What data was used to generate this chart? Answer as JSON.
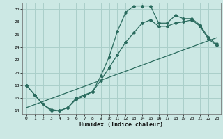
{
  "title": "",
  "xlabel": "Humidex (Indice chaleur)",
  "ylabel": "",
  "background_color": "#cce8e4",
  "grid_color": "#aacfca",
  "line_color": "#2a6b5e",
  "xlim": [
    -0.5,
    23.5
  ],
  "ylim": [
    13.5,
    31.0
  ],
  "xticks": [
    0,
    1,
    2,
    3,
    4,
    5,
    6,
    7,
    8,
    9,
    10,
    11,
    12,
    13,
    14,
    15,
    16,
    17,
    18,
    19,
    20,
    21,
    22,
    23
  ],
  "yticks": [
    14,
    16,
    18,
    20,
    22,
    24,
    26,
    28,
    30
  ],
  "series1_x": [
    0,
    1,
    2,
    3,
    4,
    5,
    6,
    7,
    8,
    9,
    10,
    11,
    12,
    13,
    14,
    15,
    16,
    17,
    18,
    19,
    20,
    21,
    22,
    23
  ],
  "series1_y": [
    18,
    16.5,
    15,
    14,
    14,
    14.5,
    16,
    16.5,
    17,
    19.5,
    22.5,
    26.5,
    29.5,
    30.5,
    30.5,
    30.5,
    27.8,
    27.8,
    29,
    28.5,
    28.5,
    27.5,
    25.5,
    24.5
  ],
  "series2_x": [
    0,
    1,
    2,
    3,
    4,
    5,
    6,
    7,
    8,
    9,
    10,
    11,
    12,
    13,
    14,
    15,
    16,
    17,
    18,
    19,
    20,
    21,
    22,
    23
  ],
  "series2_y": [
    18,
    16.5,
    15,
    14.2,
    14.0,
    14.5,
    15.8,
    16.3,
    17.0,
    18.8,
    20.8,
    22.8,
    24.8,
    26.3,
    27.8,
    28.3,
    27.3,
    27.3,
    27.8,
    28.0,
    28.3,
    27.3,
    25.3,
    24.3
  ],
  "series3_x": [
    0,
    23
  ],
  "series3_y": [
    14.5,
    25.5
  ]
}
